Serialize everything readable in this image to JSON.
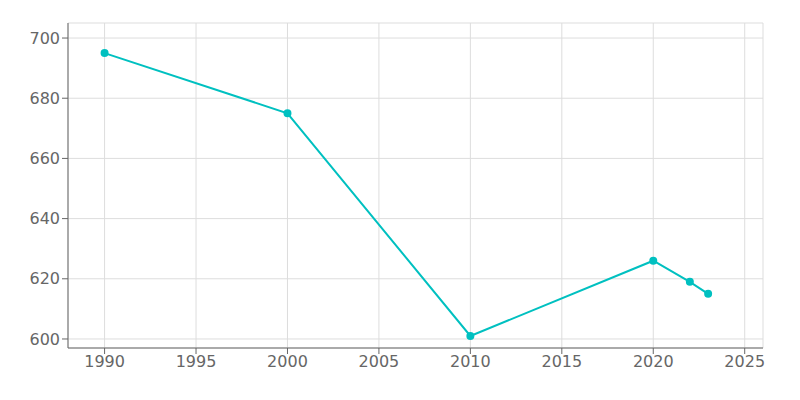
{
  "chart_data": {
    "type": "line",
    "x": [
      1990,
      2000,
      2010,
      2020,
      2022,
      2023
    ],
    "values": [
      695,
      675,
      601,
      626,
      619,
      615
    ],
    "color": "#00C0C0",
    "marker": "circle",
    "xlim": [
      1988,
      2026
    ],
    "ylim": [
      597,
      705
    ],
    "xticks": [
      1990,
      1995,
      2000,
      2005,
      2010,
      2015,
      2020,
      2025
    ],
    "yticks": [
      600,
      620,
      640,
      660,
      680,
      700
    ],
    "grid": true
  }
}
